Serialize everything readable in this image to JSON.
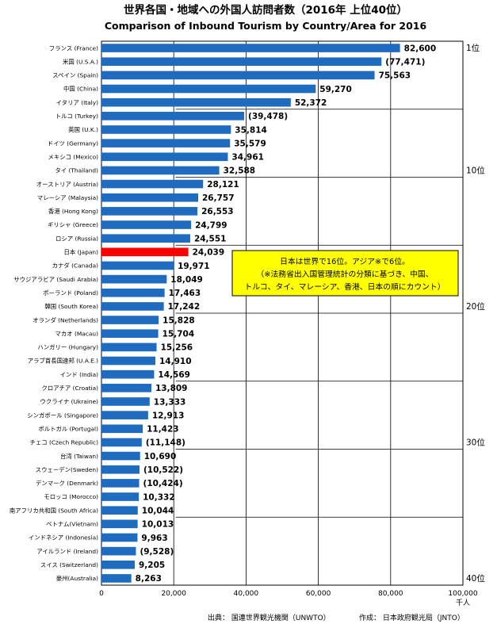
{
  "chart_data": {
    "type": "bar",
    "orientation": "horizontal",
    "title": "世界各国・地域への外国人訪問者数（2016年 上位40位）",
    "subtitle": "Comparison of Inbound Tourism by Country/Area for 2016",
    "unit_label": "千人",
    "xlim": [
      0,
      100000
    ],
    "xticks": [
      "0",
      "20,000",
      "40,000",
      "60,000",
      "80,000",
      "100,000"
    ],
    "grid": true,
    "highlight_color": "#ff0000",
    "bar_color": "#1f6bbf",
    "categories": [
      "フランス (France)",
      "米国 (U.S.A.)",
      "スペイン (Spain)",
      "中国 (China)",
      "イタリア (Italy)",
      "トルコ (Turkey)",
      "英国 (U.K.)",
      "ドイツ (Germany)",
      "メキシコ (Mexico)",
      "タイ (Thailand)",
      "オーストリア (Austria)",
      "マレーシア (Malaysia)",
      "香港 (Hong Kong)",
      "ギリシャ (Greece)",
      "ロシア (Russia)",
      "日本 (Japan)",
      "カナダ (Canada)",
      "サウジアラビア (Saudi Arabia)",
      "ポーランド (Poland)",
      "韓国 (South Korea)",
      "オランダ (Netherlands)",
      "マカオ (Macau)",
      "ハンガリー (Hungary)",
      "アラブ首長国連邦 (U.A.E.)",
      "インド (India)",
      "クロアチア (Croatia)",
      "ウクライナ (Ukraine)",
      "シンガポール (Singapore)",
      "ポルトガル (Portugal)",
      "チェコ (Czech Republic)",
      "台湾 (Taiwan)",
      "スウェーデン(Sweden)",
      "デンマーク (Denmark)",
      "モロッコ (Morocco)",
      "南アフリカ共和国 (South Africa)",
      "ベトナム(Vietnam)",
      "インドネシア (Indonesia)",
      "アイルランド (Ireland)",
      "スイス (Switzerland)",
      "豪州(Australia)"
    ],
    "values": [
      82600,
      77471,
      75563,
      59270,
      52372,
      39478,
      35814,
      35579,
      34961,
      32588,
      28121,
      26757,
      26553,
      24799,
      24551,
      24039,
      19971,
      18049,
      17463,
      17242,
      15828,
      15704,
      15256,
      14910,
      14569,
      13809,
      13333,
      12913,
      11423,
      11148,
      10690,
      10522,
      10424,
      10332,
      10044,
      10013,
      9963,
      9528,
      9205,
      8263
    ],
    "value_labels": [
      "82,600",
      "(77,471)",
      "75,563",
      "59,270",
      "52,372",
      "(39,478)",
      "35,814",
      "35,579",
      "34,961",
      "32,588",
      "28,121",
      "26,757",
      "26,553",
      "24,799",
      "24,551",
      "24,039",
      "19,971",
      "18,049",
      "17,463",
      "17,242",
      "15,828",
      "15,704",
      "15,256",
      "14,910",
      "14,569",
      "13,809",
      "13,333",
      "12,913",
      "11,423",
      "(11,148)",
      "10,690",
      "(10,522)",
      "(10,424)",
      "10,332",
      "10,044",
      "10,013",
      "9,963",
      "(9,528)",
      "9,205",
      "8,263"
    ],
    "highlight_index": 15,
    "rank_labels": [
      "1位",
      "10位",
      "20位",
      "30位",
      "40位"
    ],
    "rank_label_rows": [
      0,
      9,
      19,
      29,
      39
    ],
    "annotation": {
      "lines": [
        "日本は世界で16位。アジア※で6位。",
        "（※法務省出入国管理統計の分類に基づき、中国、",
        "トルコ、タイ、マレーシア、香港、日本の順にカウント）"
      ],
      "background": "#ffff00",
      "border": "#000000"
    },
    "footer_source": "出典：  国連世界観光機関（UNWTO）",
    "footer_author": "作成：  日本政府観光局（JNTO）"
  }
}
